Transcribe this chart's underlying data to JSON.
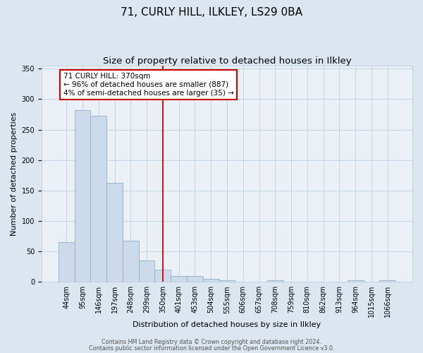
{
  "title": "71, CURLY HILL, ILKLEY, LS29 0BA",
  "subtitle": "Size of property relative to detached houses in Ilkley",
  "xlabel": "Distribution of detached houses by size in Ilkley",
  "ylabel": "Number of detached properties",
  "bar_labels": [
    "44sqm",
    "95sqm",
    "146sqm",
    "197sqm",
    "248sqm",
    "299sqm",
    "350sqm",
    "401sqm",
    "453sqm",
    "504sqm",
    "555sqm",
    "606sqm",
    "657sqm",
    "708sqm",
    "759sqm",
    "810sqm",
    "862sqm",
    "913sqm",
    "964sqm",
    "1015sqm",
    "1066sqm"
  ],
  "bar_values": [
    65,
    282,
    273,
    163,
    68,
    35,
    20,
    10,
    10,
    5,
    2,
    0,
    0,
    2,
    0,
    0,
    0,
    0,
    2,
    0,
    2
  ],
  "bar_color": "#ccdaeb",
  "bar_edge_color": "#8ab0cc",
  "ylim": [
    0,
    355
  ],
  "yticks": [
    0,
    50,
    100,
    150,
    200,
    250,
    300,
    350
  ],
  "vline_x": 6.5,
  "vline_color": "#cc0000",
  "annotation_title": "71 CURLY HILL: 370sqm",
  "annotation_line1": "← 96% of detached houses are smaller (887)",
  "annotation_line2": "4% of semi-detached houses are larger (35) →",
  "annotation_box_color": "#ffffff",
  "annotation_box_edge": "#cc0000",
  "footer1": "Contains HM Land Registry data © Crown copyright and database right 2024.",
  "footer2": "Contains public sector information licensed under the Open Government Licence v3.0.",
  "background_color": "#dce6f0",
  "plot_background": "#eaf0f6",
  "grid_color": "#b8c8d8",
  "title_fontsize": 11,
  "subtitle_fontsize": 9.5,
  "xlabel_fontsize": 8,
  "ylabel_fontsize": 8,
  "tick_fontsize": 7,
  "annotation_fontsize": 7.5,
  "footer_fontsize": 5.8
}
